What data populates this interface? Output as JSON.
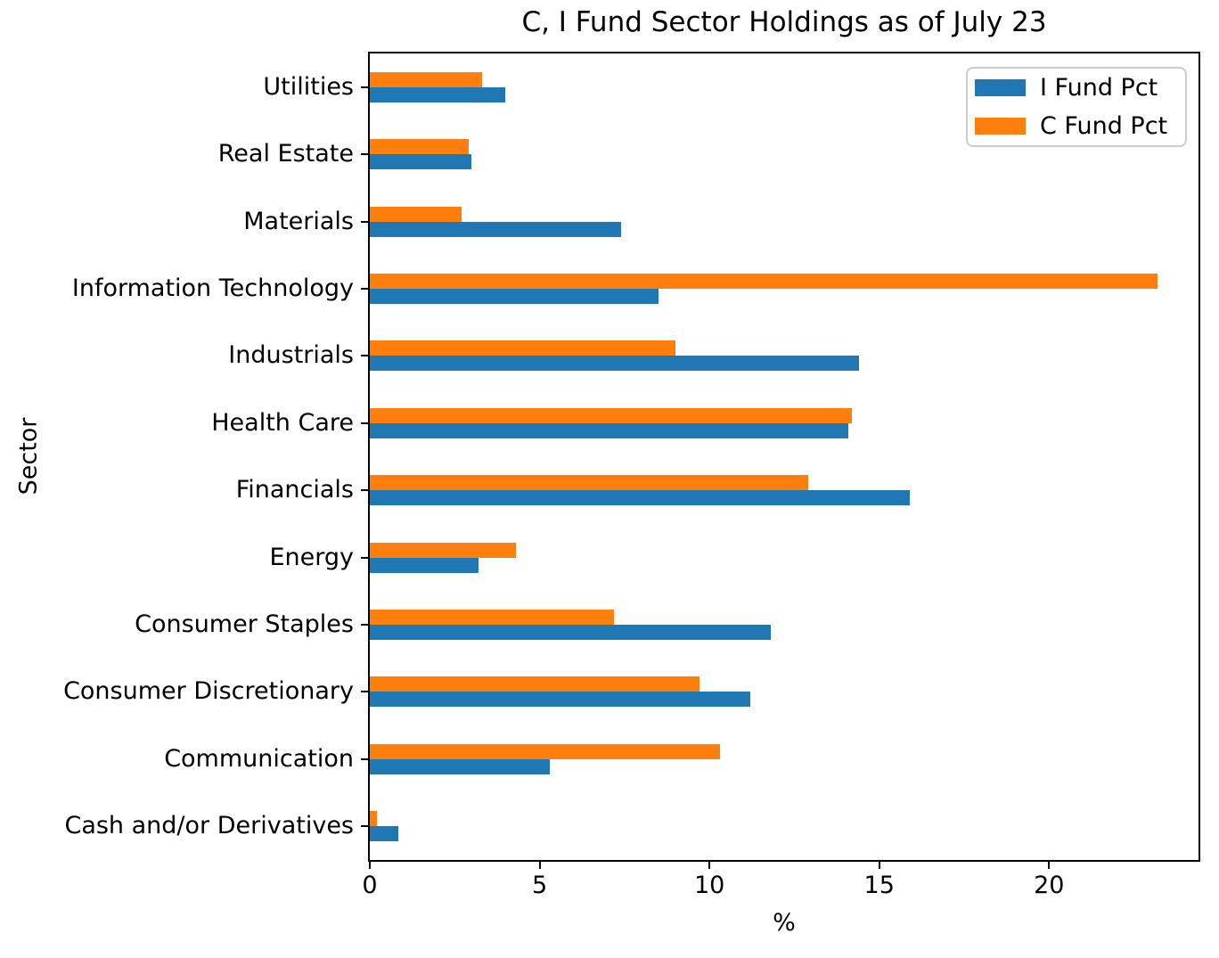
{
  "figure": {
    "background": "#ffffff"
  },
  "legend": {
    "items": [
      {
        "label": "I Fund Pct",
        "color": "#1f77b4"
      },
      {
        "label": "C Fund Pct",
        "color": "#ff7f0e"
      }
    ]
  },
  "chart_data": {
    "type": "bar",
    "orientation": "horizontal",
    "title": "C, I Fund Sector Holdings as of July 23",
    "xlabel": "%",
    "ylabel": "Sector",
    "xlim": [
      0,
      24.4
    ],
    "xticks": [
      0,
      5,
      10,
      15,
      20
    ],
    "grid": false,
    "legend_position": "upper right",
    "categories": [
      "Utilities",
      "Real Estate",
      "Materials",
      "Information Technology",
      "Industrials",
      "Health Care",
      "Financials",
      "Energy",
      "Consumer Staples",
      "Consumer Discretionary",
      "Communication",
      "Cash and/or Derivatives"
    ],
    "series": [
      {
        "name": "I Fund Pct",
        "color": "#1f77b4",
        "values": [
          4.0,
          3.0,
          7.4,
          8.5,
          14.4,
          14.1,
          15.9,
          3.2,
          11.8,
          11.2,
          5.3,
          0.85
        ]
      },
      {
        "name": "C Fund Pct",
        "color": "#ff7f0e",
        "values": [
          3.3,
          2.9,
          2.7,
          23.2,
          9.0,
          14.2,
          12.9,
          4.3,
          7.2,
          9.7,
          10.3,
          0.2
        ]
      }
    ],
    "group_bar_order_top_to_bottom": [
      "C Fund Pct",
      "I Fund Pct"
    ]
  }
}
